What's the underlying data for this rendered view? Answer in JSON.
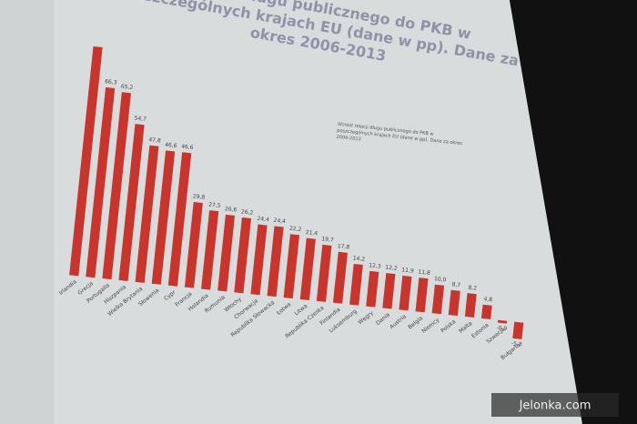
{
  "chart_data": {
    "type": "bar",
    "title": "Relacja długu publicznego do PKB w poszczególnych krajach EU (dane w pp). Dane za okres 2006-2013",
    "subtitle": "Wzrost relacji długu publicznego do PKB w poszczególnych krajach EU (dane w pp). Dane za okres 2006-2013",
    "categories": [
      "Irlandia",
      "Grecja",
      "Portugalia",
      "Hiszpania",
      "Wielka Brytania",
      "Słowenia",
      "Cypr",
      "Francja",
      "Holandia",
      "Rumunia",
      "Włochy",
      "Chorwacja",
      "Republika Słowacka",
      "Łotwa",
      "Litwa",
      "Republika Czeska",
      "Finlandia",
      "Luksemburg",
      "Węgry",
      "Dania",
      "Austria",
      "Belgia",
      "Niemcy",
      "Polska",
      "Malta",
      "Estonia",
      "Szwecja",
      "Bułgaria"
    ],
    "values": [
      80,
      66.3,
      65.2,
      54.7,
      47.8,
      46.6,
      46.6,
      29.8,
      27.5,
      26.6,
      26.2,
      24.4,
      24.4,
      22.2,
      21.4,
      19.7,
      17.8,
      14.2,
      12.3,
      12.2,
      11.9,
      11.8,
      10.0,
      8.7,
      8.2,
      4.8,
      -0.9,
      -5.8
    ],
    "value_labels": [
      null,
      "66,3",
      "65,2",
      "54,7",
      "47,8",
      "46,6",
      "46,6",
      "29,8",
      "27,5",
      "26,6",
      "26,2",
      "24,4",
      "24,4",
      "22,2",
      "21,4",
      "19,7",
      "17,8",
      "14,2",
      "12,3",
      "12,2",
      "11,9",
      "11,8",
      "10,0",
      "8,7",
      "8,2",
      "4,8",
      "-0,9",
      "-5,8"
    ],
    "color": "#c9342c",
    "ylim": [
      -10,
      85
    ],
    "watermark": "Jelonka.com"
  }
}
